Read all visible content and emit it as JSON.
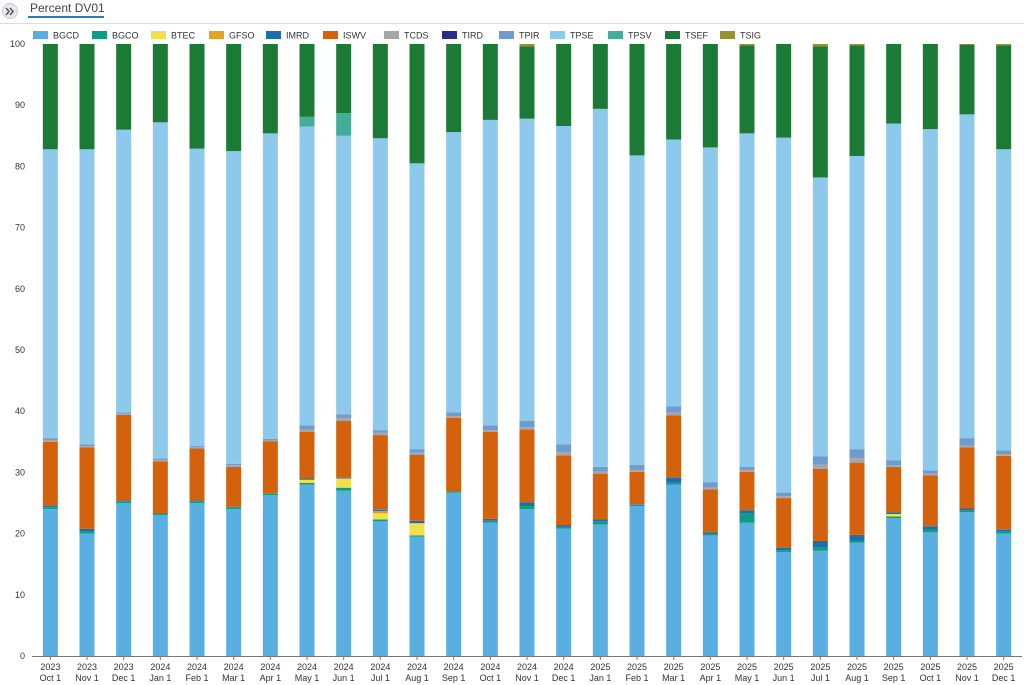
{
  "header": {
    "tab_title": "Percent DV01",
    "collapse_icon": "double-chevron-right-icon"
  },
  "chart_data": {
    "type": "bar",
    "stacked": true,
    "title": "Percent DV01",
    "xlabel": "",
    "ylabel": "",
    "ylim": [
      0,
      100
    ],
    "yticks": [
      0,
      10,
      20,
      30,
      40,
      50,
      60,
      70,
      80,
      90,
      100
    ],
    "grid": false,
    "legend_position": "top",
    "categories": [
      [
        "2023",
        "Oct 1"
      ],
      [
        "2023",
        "Nov 1"
      ],
      [
        "2023",
        "Dec 1"
      ],
      [
        "2024",
        "Jan 1"
      ],
      [
        "2024",
        "Feb 1"
      ],
      [
        "2024",
        "Mar 1"
      ],
      [
        "2024",
        "Apr 1"
      ],
      [
        "2024",
        "May 1"
      ],
      [
        "2024",
        "Jun 1"
      ],
      [
        "2024",
        "Jul 1"
      ],
      [
        "2024",
        "Aug 1"
      ],
      [
        "2024",
        "Sep 1"
      ],
      [
        "2024",
        "Oct 1"
      ],
      [
        "2024",
        "Nov 1"
      ],
      [
        "2024",
        "Dec 1"
      ],
      [
        "2025",
        "Jan 1"
      ],
      [
        "2025",
        "Feb 1"
      ],
      [
        "2025",
        "Mar 1"
      ],
      [
        "2025",
        "Apr 1"
      ],
      [
        "2025",
        "May 1"
      ],
      [
        "2025",
        "Jun 1"
      ],
      [
        "2025",
        "Jul 1"
      ],
      [
        "2025",
        "Aug 1"
      ],
      [
        "2025",
        "Sep 1"
      ],
      [
        "2025",
        "Oct 1"
      ],
      [
        "2025",
        "Nov 1"
      ],
      [
        "2025",
        "Dec 1"
      ]
    ],
    "series": [
      {
        "name": "BGCD",
        "color": "#5aafe2",
        "values": [
          24.0,
          20.0,
          25.0,
          23.0,
          25.0,
          24.0,
          26.3,
          28.0,
          27.0,
          22.0,
          19.5,
          26.7,
          21.8,
          24.0,
          20.8,
          21.5,
          24.5,
          28.0,
          19.7,
          21.8,
          17.0,
          17.2,
          18.5,
          22.5,
          20.2,
          23.5,
          20.0
        ]
      },
      {
        "name": "BGCO",
        "color": "#0c9e82",
        "values": [
          0.3,
          0.3,
          0.3,
          0.2,
          0.3,
          0.3,
          0.2,
          0.3,
          0.5,
          0.3,
          0.2,
          0.1,
          0.3,
          0.5,
          0.3,
          0.5,
          0.2,
          0.3,
          0.2,
          1.5,
          0.3,
          0.5,
          0.3,
          0.3,
          0.4,
          0.3,
          0.3
        ]
      },
      {
        "name": "BTEC",
        "color": "#f1e04b",
        "values": [
          0.0,
          0.0,
          0.0,
          0.0,
          0.0,
          0.0,
          0.0,
          0.5,
          1.5,
          1.0,
          2.0,
          0.0,
          0.0,
          0.0,
          0.0,
          0.0,
          0.0,
          0.0,
          0.0,
          0.0,
          0.0,
          0.0,
          0.0,
          0.4,
          0.0,
          0.0,
          0.0
        ]
      },
      {
        "name": "GFSO",
        "color": "#e2a422",
        "values": [
          0.0,
          0.0,
          0.0,
          0.0,
          0.0,
          0.0,
          0.0,
          0.0,
          0.0,
          0.4,
          0.0,
          0.0,
          0.0,
          0.0,
          0.0,
          0.0,
          0.0,
          0.0,
          0.0,
          0.0,
          0.0,
          0.0,
          0.0,
          0.0,
          0.0,
          0.0,
          0.0
        ]
      },
      {
        "name": "IMRD",
        "color": "#1a6fae",
        "values": [
          0.2,
          0.5,
          0.1,
          0.1,
          0.1,
          0.1,
          0.1,
          0.2,
          0.1,
          0.2,
          0.4,
          0.1,
          0.3,
          0.6,
          0.3,
          0.3,
          0.1,
          0.9,
          0.3,
          0.5,
          0.4,
          1.1,
          1.0,
          0.3,
          0.6,
          0.3,
          0.3
        ]
      },
      {
        "name": "ISWV",
        "color": "#d4620c",
        "values": [
          10.5,
          13.3,
          14.0,
          8.5,
          8.5,
          6.5,
          8.5,
          7.6,
          9.3,
          12.2,
          10.8,
          12.0,
          14.2,
          11.9,
          11.4,
          7.5,
          5.3,
          10.1,
          7.0,
          6.3,
          8.1,
          11.8,
          11.8,
          7.4,
          8.3,
          10.0,
          12.1
        ]
      },
      {
        "name": "TCDS",
        "color": "#a6a6a6",
        "values": [
          0.3,
          0.2,
          0.2,
          0.3,
          0.2,
          0.3,
          0.2,
          0.4,
          0.5,
          0.4,
          0.3,
          0.3,
          0.3,
          0.4,
          0.5,
          0.3,
          0.3,
          0.5,
          0.3,
          0.3,
          0.3,
          0.7,
          0.7,
          0.3,
          0.3,
          0.3,
          0.3
        ]
      },
      {
        "name": "TIRD",
        "color": "#2e2b8c",
        "values": [
          0.0,
          0.0,
          0.0,
          0.0,
          0.0,
          0.0,
          0.0,
          0.0,
          0.0,
          0.0,
          0.0,
          0.0,
          0.0,
          0.0,
          0.0,
          0.0,
          0.0,
          0.0,
          0.0,
          0.0,
          0.0,
          0.0,
          0.0,
          0.0,
          0.0,
          0.0,
          0.0
        ]
      },
      {
        "name": "TPIR",
        "color": "#6e9bd0",
        "values": [
          0.3,
          0.3,
          0.2,
          0.2,
          0.2,
          0.2,
          0.2,
          0.7,
          0.6,
          0.4,
          0.6,
          0.6,
          0.8,
          1.0,
          1.3,
          0.8,
          0.8,
          1.0,
          0.9,
          0.5,
          0.6,
          1.3,
          1.5,
          0.8,
          0.5,
          1.2,
          0.6
        ]
      },
      {
        "name": "TPSE",
        "color": "#8cc9eb",
        "values": [
          47.2,
          48.2,
          46.2,
          54.9,
          48.6,
          51.1,
          49.9,
          48.8,
          45.5,
          47.7,
          46.7,
          45.8,
          49.9,
          49.4,
          52.0,
          58.5,
          50.6,
          43.6,
          54.7,
          54.5,
          58.0,
          45.6,
          47.9,
          55.0,
          55.8,
          52.9,
          49.2
        ]
      },
      {
        "name": "TPSV",
        "color": "#44ad99",
        "values": [
          0.0,
          0.0,
          0.0,
          0.0,
          0.0,
          0.0,
          0.0,
          1.6,
          3.7,
          0.0,
          0.0,
          0.0,
          0.0,
          0.0,
          0.0,
          0.0,
          0.0,
          0.0,
          0.0,
          0.0,
          0.0,
          0.0,
          0.0,
          0.0,
          0.0,
          0.0,
          0.0
        ]
      },
      {
        "name": "TSEF",
        "color": "#1b7a36",
        "values": [
          17.2,
          17.2,
          14.0,
          12.8,
          17.1,
          17.5,
          14.6,
          11.9,
          11.3,
          15.4,
          19.5,
          14.4,
          12.4,
          11.8,
          13.4,
          10.6,
          18.2,
          15.6,
          16.9,
          14.4,
          15.3,
          21.4,
          18.1,
          13.0,
          13.9,
          11.4,
          17.0
        ]
      },
      {
        "name": "TSIG",
        "color": "#939336",
        "values": [
          0.0,
          0.0,
          0.0,
          0.0,
          0.0,
          0.0,
          0.0,
          0.0,
          0.0,
          0.0,
          0.0,
          0.0,
          0.0,
          0.4,
          0.0,
          0.0,
          0.0,
          0.0,
          0.0,
          0.2,
          0.0,
          0.4,
          0.2,
          0.0,
          0.0,
          0.1,
          0.2
        ]
      }
    ]
  }
}
